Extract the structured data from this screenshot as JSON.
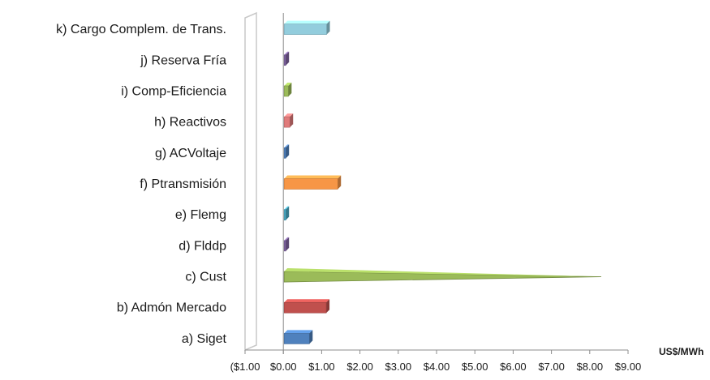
{
  "chart_data": {
    "type": "bar",
    "orientation": "horizontal",
    "style": "3d",
    "unit_label": "US$/MWh",
    "categories": [
      "a) Siget",
      "b) Admón Mercado",
      "c) Cust",
      "d) Flddp",
      "e) Flemg",
      "f) Ptransmisión",
      "g) ACVoltaje",
      "h) Reactivos",
      "i) Comp-Eficiencia",
      "j) Reserva Fría",
      "k) Cargo Complem. de Trans."
    ],
    "values": [
      0.68,
      1.12,
      8.3,
      0.06,
      0.06,
      1.42,
      0.06,
      0.17,
      0.13,
      0.06,
      1.13
    ],
    "colors": [
      "#4f81bd",
      "#c0504d",
      "#9bbb59",
      "#8064a2",
      "#4bacc6",
      "#f79646",
      "#4f81bd",
      "#e07b7b",
      "#9bbb59",
      "#8064a2",
      "#93cddd"
    ],
    "xlim": [
      -1,
      9
    ],
    "tick_values": [
      -1,
      0,
      1,
      2,
      3,
      4,
      5,
      6,
      7,
      8,
      9
    ],
    "tick_labels": [
      "($1.00",
      "$0.00",
      "$1.00",
      "$2.00",
      "$3.00",
      "$4.00",
      "$5.00",
      "$6.00",
      "$7.00",
      "$8.00",
      "$9.00"
    ],
    "grid": false
  }
}
